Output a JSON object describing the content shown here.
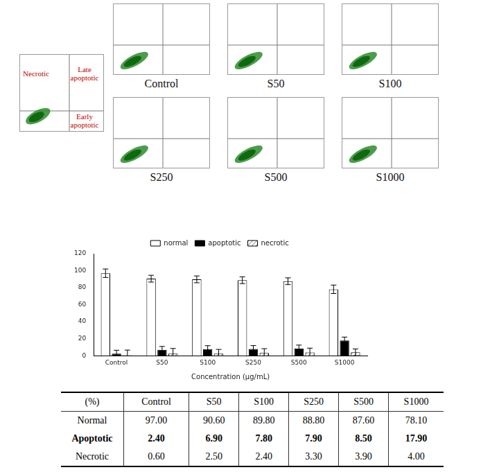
{
  "flow_cytometry": {
    "legend_panel": {
      "quadrants": {
        "upper_left": "Necrotic",
        "upper_right": "Late apoptotic",
        "lower_right": "Early apoptotic"
      }
    },
    "panels": [
      "Control",
      "S50",
      "S100",
      "S250",
      "S500",
      "S1000"
    ]
  },
  "chart_data": {
    "type": "bar",
    "x_label": "Concentration (μg/mL)",
    "categories": [
      "Control",
      "S50",
      "S100",
      "S250",
      "S500",
      "S1000"
    ],
    "series": [
      {
        "name": "normal",
        "color": "#ffffff",
        "values": [
          97.0,
          90.6,
          89.8,
          88.8,
          87.6,
          78.1
        ],
        "errors": [
          5,
          4,
          4,
          4,
          4,
          5
        ]
      },
      {
        "name": "apoptotic",
        "color": "#000000",
        "values": [
          2.4,
          6.9,
          7.8,
          7.9,
          8.5,
          17.9
        ],
        "errors": [
          4,
          4,
          4,
          4,
          4,
          4
        ]
      },
      {
        "name": "necrotic",
        "color": "#808080",
        "values": [
          0.6,
          2.5,
          2.4,
          3.3,
          3.9,
          4.0
        ],
        "errors": [
          6,
          6,
          5,
          5,
          5,
          4
        ]
      }
    ],
    "ylim": [
      0,
      120
    ],
    "yticks": [
      0,
      20,
      40,
      60,
      80,
      100,
      120
    ],
    "grid": false,
    "legend": "top"
  },
  "table": {
    "header": [
      "(%)",
      "Control",
      "S50",
      "S100",
      "S250",
      "S500",
      "S1000"
    ],
    "rows": [
      [
        "Normal",
        "97.00",
        "90.60",
        "89.80",
        "88.80",
        "87.60",
        "78.10"
      ],
      [
        "Apoptotic",
        "2.40",
        "6.90",
        "7.80",
        "7.90",
        "8.50",
        "17.90"
      ],
      [
        "Necrotic",
        "0.60",
        "2.50",
        "2.40",
        "3.30",
        "3.90",
        "4.00"
      ]
    ]
  }
}
